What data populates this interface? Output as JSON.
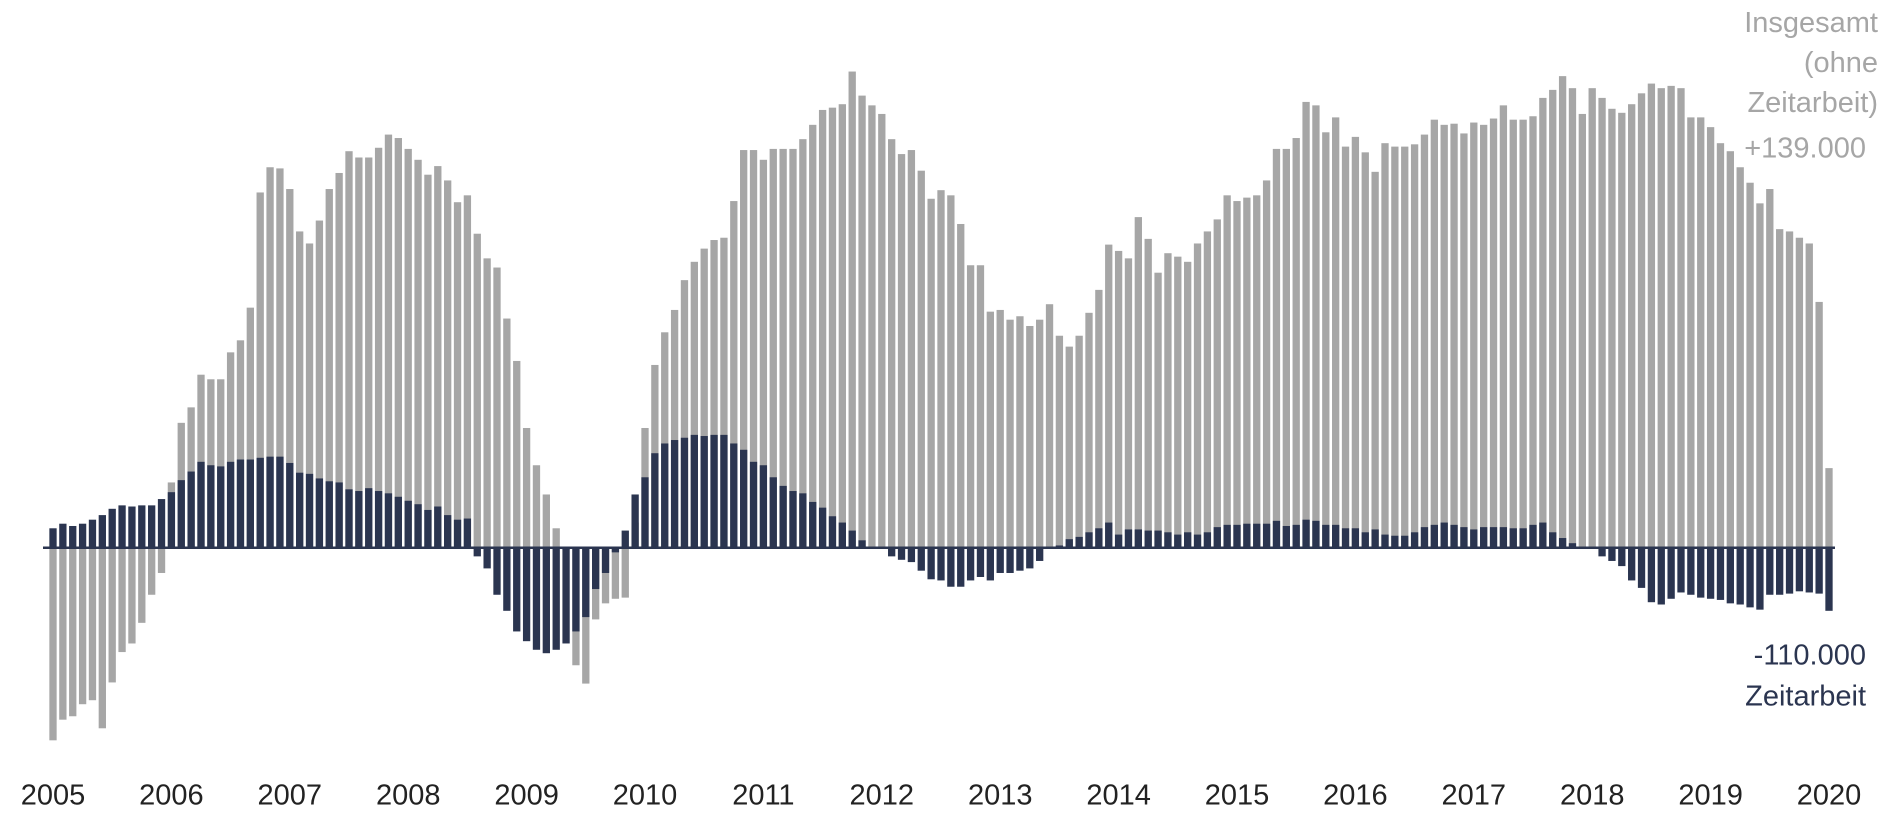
{
  "chart_data": {
    "type": "bar",
    "categories": [
      "2005",
      null,
      null,
      null,
      null,
      null,
      null,
      null,
      null,
      null,
      null,
      null,
      "2006",
      null,
      null,
      null,
      null,
      null,
      null,
      null,
      null,
      null,
      null,
      null,
      "2007",
      null,
      null,
      null,
      null,
      null,
      null,
      null,
      null,
      null,
      null,
      null,
      "2008",
      null,
      null,
      null,
      null,
      null,
      null,
      null,
      null,
      null,
      null,
      null,
      "2009",
      null,
      null,
      null,
      null,
      null,
      null,
      null,
      null,
      null,
      null,
      null,
      "2010",
      null,
      null,
      null,
      null,
      null,
      null,
      null,
      null,
      null,
      null,
      null,
      "2011",
      null,
      null,
      null,
      null,
      null,
      null,
      null,
      null,
      null,
      null,
      null,
      "2012",
      null,
      null,
      null,
      null,
      null,
      null,
      null,
      null,
      null,
      null,
      null,
      "2013",
      null,
      null,
      null,
      null,
      null,
      null,
      null,
      null,
      null,
      null,
      null,
      "2014",
      null,
      null,
      null,
      null,
      null,
      null,
      null,
      null,
      null,
      null,
      null,
      "2015",
      null,
      null,
      null,
      null,
      null,
      null,
      null,
      null,
      null,
      null,
      null,
      "2016",
      null,
      null,
      null,
      null,
      null,
      null,
      null,
      null,
      null,
      null,
      null,
      "2017",
      null,
      null,
      null,
      null,
      null,
      null,
      null,
      null,
      null,
      null,
      null,
      "2018",
      null,
      null,
      null,
      null,
      null,
      null,
      null,
      null,
      null,
      null,
      null,
      "2019",
      null,
      null,
      null,
      null,
      null,
      null,
      null,
      null,
      null,
      null,
      null,
      "2020"
    ],
    "ylim": [
      -400000,
      900000
    ],
    "series": [
      {
        "name": "Insgesamt (ohne Zeitarbeit)",
        "color": "#a6a6a6",
        "values": [
          -336000,
          -300000,
          -294000,
          -273000,
          -266000,
          -315000,
          -235000,
          -182000,
          -167000,
          -131000,
          -82000,
          -44000,
          114000,
          218000,
          245000,
          302000,
          294000,
          294000,
          341000,
          362000,
          419000,
          620000,
          664000,
          662000,
          626000,
          552000,
          531000,
          571000,
          626000,
          654000,
          692000,
          681000,
          681000,
          698000,
          721000,
          715000,
          696000,
          677000,
          651000,
          666000,
          641000,
          603000,
          615000,
          548000,
          505000,
          489000,
          400000,
          326000,
          209000,
          144000,
          93000,
          34000,
          -4000,
          -205000,
          -237000,
          -125000,
          -97000,
          -89000,
          -87000,
          44000,
          209000,
          319000,
          376000,
          415000,
          467000,
          499000,
          522000,
          537000,
          541000,
          605000,
          694000,
          694000,
          677000,
          696000,
          696000,
          696000,
          713000,
          738000,
          764000,
          768000,
          774000,
          831000,
          789000,
          772000,
          757000,
          713000,
          687000,
          694000,
          658000,
          609000,
          624000,
          615000,
          565000,
          493000,
          493000,
          412000,
          415000,
          398000,
          404000,
          387000,
          398000,
          425000,
          370000,
          351000,
          370000,
          410000,
          450000,
          529000,
          518000,
          505000,
          577000,
          539000,
          480000,
          514000,
          508000,
          499000,
          531000,
          552000,
          573000,
          615000,
          605000,
          611000,
          615000,
          641000,
          696000,
          696000,
          715000,
          778000,
          772000,
          725000,
          751000,
          700000,
          717000,
          690000,
          656000,
          706000,
          700000,
          700000,
          704000,
          721000,
          747000,
          738000,
          740000,
          723000,
          742000,
          738000,
          749000,
          772000,
          747000,
          747000,
          753000,
          785000,
          799000,
          823000,
          802000,
          757000,
          802000,
          785000,
          766000,
          759000,
          774000,
          793000,
          810000,
          802000,
          806000,
          802000,
          751000,
          751000,
          734000,
          706000,
          692000,
          664000,
          637000,
          601000,
          626000,
          556000,
          552000,
          541000,
          531000,
          429000,
          139000
        ],
        "value_labels": [
          null,
          null,
          null,
          null,
          null,
          null,
          null,
          null,
          null,
          null,
          null,
          null,
          null,
          null,
          null,
          null,
          null,
          null,
          null,
          null,
          null,
          null,
          null,
          null,
          null,
          null,
          null,
          null,
          null,
          null,
          null,
          null,
          null,
          null,
          null,
          null,
          null,
          null,
          null,
          null,
          null,
          null,
          null,
          null,
          null,
          null,
          null,
          null,
          null,
          null,
          null,
          null,
          null,
          null,
          null,
          null,
          null,
          null,
          null,
          null,
          null,
          null,
          null,
          null,
          null,
          null,
          null,
          null,
          null,
          null,
          null,
          null,
          null,
          null,
          null,
          null,
          null,
          null,
          null,
          null,
          null,
          null,
          null,
          null,
          null,
          null,
          null,
          null,
          null,
          null,
          null,
          null,
          null,
          null,
          null,
          null,
          null,
          null,
          null,
          null,
          null,
          null,
          null,
          null,
          null,
          null,
          null,
          null,
          null,
          null,
          null,
          null,
          null,
          null,
          null,
          null,
          null,
          null,
          null,
          null,
          null,
          null,
          null,
          null,
          null,
          null,
          null,
          null,
          null,
          null,
          null,
          null,
          null,
          null,
          null,
          null,
          null,
          null,
          null,
          null,
          null,
          null,
          null,
          null,
          null,
          null,
          null,
          null,
          null,
          null,
          null,
          null,
          null,
          null,
          null,
          null,
          null,
          null,
          null,
          null,
          null,
          null,
          null,
          null,
          null,
          null,
          null,
          null,
          null,
          null,
          null,
          null,
          null,
          null,
          null,
          null,
          null,
          null,
          null,
          null,
          "+139.000"
        ]
      },
      {
        "name": "Zeitarbeit",
        "color": "#2b3550",
        "values": [
          34000,
          42000,
          38000,
          42000,
          49000,
          57000,
          68000,
          74000,
          72000,
          74000,
          74000,
          85000,
          97000,
          118000,
          133000,
          150000,
          144000,
          142000,
          150000,
          154000,
          154000,
          157000,
          159000,
          159000,
          148000,
          131000,
          129000,
          121000,
          116000,
          114000,
          102000,
          99000,
          104000,
          99000,
          95000,
          89000,
          82000,
          76000,
          66000,
          72000,
          57000,
          49000,
          51000,
          -15000,
          -36000,
          -82000,
          -110000,
          -146000,
          -163000,
          -178000,
          -184000,
          -178000,
          -167000,
          -146000,
          -121000,
          -72000,
          -44000,
          -8000,
          30000,
          93000,
          123000,
          165000,
          182000,
          188000,
          192000,
          197000,
          195000,
          197000,
          197000,
          182000,
          171000,
          150000,
          144000,
          123000,
          108000,
          99000,
          95000,
          80000,
          70000,
          55000,
          44000,
          30000,
          13000,
          2000,
          -2000,
          -15000,
          -21000,
          -25000,
          -40000,
          -55000,
          -57000,
          -68000,
          -68000,
          -57000,
          -51000,
          -57000,
          -44000,
          -44000,
          -40000,
          -36000,
          -23000,
          -2000,
          4000,
          15000,
          19000,
          27000,
          34000,
          44000,
          23000,
          32000,
          32000,
          30000,
          30000,
          27000,
          23000,
          27000,
          23000,
          27000,
          36000,
          40000,
          40000,
          42000,
          42000,
          42000,
          47000,
          38000,
          40000,
          49000,
          47000,
          40000,
          40000,
          34000,
          34000,
          27000,
          32000,
          23000,
          21000,
          21000,
          27000,
          36000,
          40000,
          44000,
          40000,
          36000,
          32000,
          36000,
          36000,
          36000,
          34000,
          34000,
          40000,
          44000,
          27000,
          17000,
          8000,
          2000,
          0,
          -15000,
          -23000,
          -32000,
          -57000,
          -70000,
          -95000,
          -99000,
          -89000,
          -78000,
          -82000,
          -87000,
          -89000,
          -91000,
          -97000,
          -99000,
          -104000,
          -108000,
          -82000,
          -82000,
          -80000,
          -76000,
          -78000,
          -80000,
          -110000
        ],
        "value_labels": [
          null,
          null,
          null,
          null,
          null,
          null,
          null,
          null,
          null,
          null,
          null,
          null,
          null,
          null,
          null,
          null,
          null,
          null,
          null,
          null,
          null,
          null,
          null,
          null,
          null,
          null,
          null,
          null,
          null,
          null,
          null,
          null,
          null,
          null,
          null,
          null,
          null,
          null,
          null,
          null,
          null,
          null,
          null,
          null,
          null,
          null,
          null,
          null,
          null,
          null,
          null,
          null,
          null,
          null,
          null,
          null,
          null,
          null,
          null,
          null,
          null,
          null,
          null,
          null,
          null,
          null,
          null,
          null,
          null,
          null,
          null,
          null,
          null,
          null,
          null,
          null,
          null,
          null,
          null,
          null,
          null,
          null,
          null,
          null,
          null,
          null,
          null,
          null,
          null,
          null,
          null,
          null,
          null,
          null,
          null,
          null,
          null,
          null,
          null,
          null,
          null,
          null,
          null,
          null,
          null,
          null,
          null,
          null,
          null,
          null,
          null,
          null,
          null,
          null,
          null,
          null,
          null,
          null,
          null,
          null,
          null,
          null,
          null,
          null,
          null,
          null,
          null,
          null,
          null,
          null,
          null,
          null,
          null,
          null,
          null,
          null,
          null,
          null,
          null,
          null,
          null,
          null,
          null,
          null,
          null,
          null,
          null,
          null,
          null,
          null,
          null,
          null,
          null,
          null,
          null,
          null,
          null,
          null,
          null,
          null,
          null,
          null,
          null,
          null,
          null,
          null,
          null,
          null,
          null,
          null,
          null,
          null,
          null,
          null,
          null,
          null,
          null,
          null,
          null,
          null,
          "-110.000"
        ]
      }
    ]
  }
}
